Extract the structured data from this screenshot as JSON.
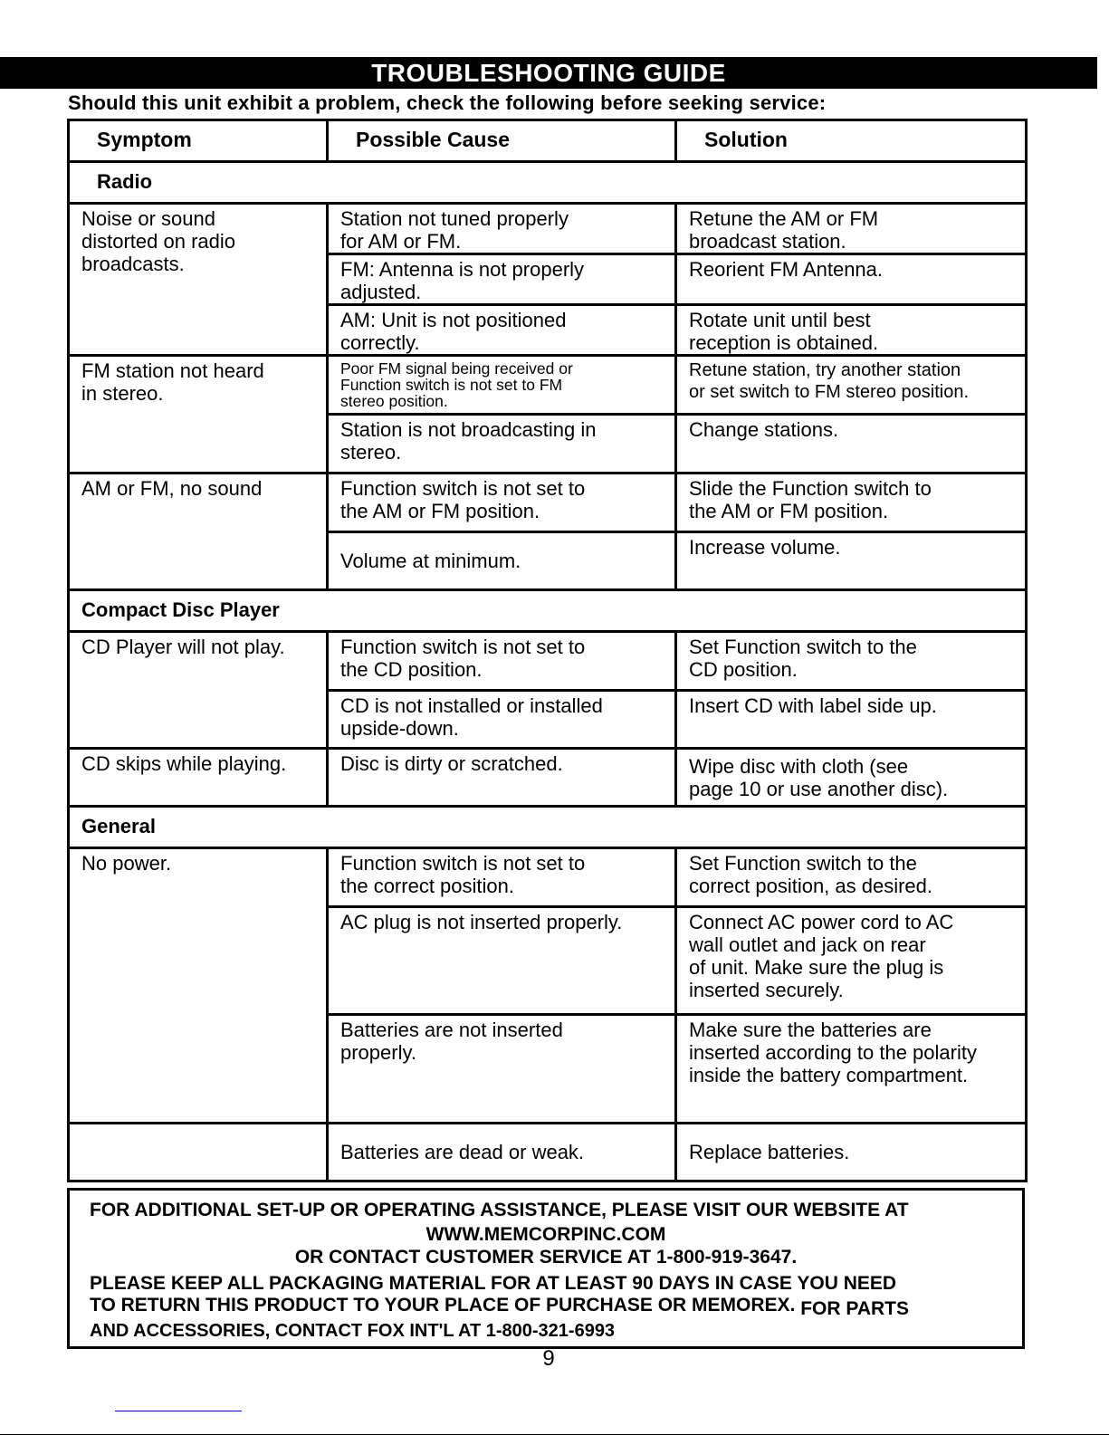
{
  "title": "TROUBLESHOOTING GUIDE",
  "intro": "Should this unit exhibit a problem, check the following before seeking service:",
  "columns": [
    "Symptom",
    "Possible Cause",
    "Solution"
  ],
  "sections": [
    {
      "title": "Radio",
      "entries": [
        {
          "symptom": "Noise or sound\ndistorted on radio\nbroadcasts.",
          "causes": [
            {
              "cause": "Station not tuned properly\nfor AM or FM.",
              "solution": "Retune the AM or FM\nbroadcast station."
            },
            {
              "cause": "FM: Antenna is not properly\nadjusted.",
              "solution": "Reorient FM Antenna."
            },
            {
              "cause": "AM: Unit is not positioned\ncorrectly.",
              "solution": "Rotate unit until best\nreception is obtained."
            }
          ]
        },
        {
          "symptom": "FM station not heard\nin stereo.",
          "causes": [
            {
              "cause": "Poor FM signal being received or\nFunction switch is not set to FM\nstereo position.",
              "solution": "Retune station, try another station\nor set switch to FM stereo position."
            },
            {
              "cause": "Station is not broadcasting in\nstereo.",
              "solution": "Change stations."
            }
          ]
        },
        {
          "symptom": "AM or FM, no sound",
          "causes": [
            {
              "cause": "Function switch is not set to\nthe AM or FM position.",
              "solution": "Slide the Function switch to\nthe AM or FM position."
            },
            {
              "cause": "Volume at minimum.",
              "solution": "Increase volume."
            }
          ]
        }
      ]
    },
    {
      "title": "Compact Disc Player",
      "entries": [
        {
          "symptom": "CD Player will not play.",
          "causes": [
            {
              "cause": "Function switch is not set to\nthe CD position.",
              "solution": "Set Function switch to the\nCD position."
            },
            {
              "cause": "CD is not installed or installed\nupside-down.",
              "solution": "Insert CD with label side up."
            }
          ]
        },
        {
          "symptom": "CD skips while playing.",
          "causes": [
            {
              "cause": "Disc is dirty or scratched.",
              "solution": "Wipe disc with cloth (see\npage 10 or use another disc)."
            }
          ]
        }
      ]
    },
    {
      "title": "General",
      "entries": [
        {
          "symptom": "No power.",
          "causes": [
            {
              "cause": "Function switch is not set to\nthe correct position.",
              "solution": "Set Function switch to the\ncorrect position, as desired."
            },
            {
              "cause": "AC plug is not inserted properly.",
              "solution": "Connect AC power cord to AC\nwall outlet and jack on rear\nof unit. Make sure the plug is\ninserted securely."
            },
            {
              "cause": "Batteries are not inserted\nproperly.",
              "solution": "Make sure the batteries are\ninserted according to the polarity\ninside the battery compartment."
            }
          ]
        },
        {
          "symptom": "",
          "causes": [
            {
              "cause": "Batteries are dead or weak.",
              "solution": "Replace batteries."
            }
          ]
        }
      ]
    }
  ],
  "footer": {
    "line1": "FOR ADDITIONAL SET-UP OR OPERATING ASSISTANCE, PLEASE VISIT OUR WEBSITE AT",
    "website": "WWW.MEMCORPINC.COM",
    "line3": "OR CONTACT CUSTOMER SERVICE AT 1-800-919-3647.",
    "line4": "PLEASE KEEP ALL PACKAGING MATERIAL FOR AT LEAST 90 DAYS IN CASE YOU NEED",
    "line5a": "TO RETURN THIS PRODUCT TO YOUR PLACE OF PURCHASE OR MEMOREX.",
    "line5b": "FOR PARTS",
    "line6": "AND ACCESSORIES, CONTACT FOX INT'L AT 1-800-321-6993"
  },
  "page_number": "9"
}
